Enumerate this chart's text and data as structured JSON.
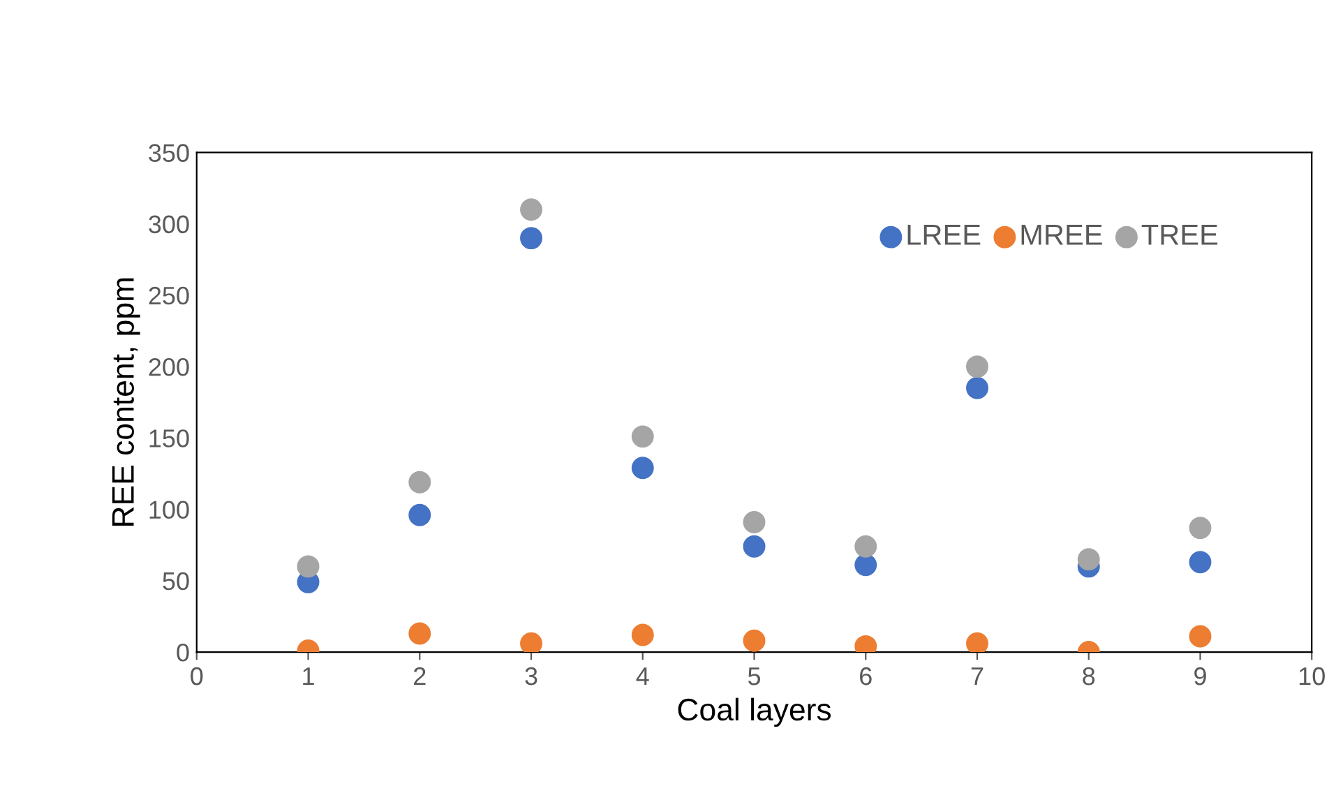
{
  "chart_data": {
    "type": "scatter",
    "xlabel": "Coal layers",
    "ylabel": "REE content, ppm",
    "x": [
      1,
      2,
      3,
      4,
      5,
      6,
      7,
      8,
      9
    ],
    "series": [
      {
        "name": "LREE",
        "color": "#4472c4",
        "values": [
          49,
          96,
          290,
          129,
          74,
          61,
          185,
          60,
          63
        ]
      },
      {
        "name": "MREE",
        "color": "#ed7d31",
        "values": [
          1,
          13,
          6,
          12,
          8,
          4,
          6,
          0,
          11
        ]
      },
      {
        "name": "TREE",
        "color": "#a5a5a5",
        "values": [
          60,
          119,
          310,
          151,
          91,
          74,
          200,
          65,
          87
        ]
      }
    ],
    "xlim": [
      0,
      10
    ],
    "xticks": [
      0,
      1,
      2,
      3,
      4,
      5,
      6,
      7,
      8,
      9,
      10
    ],
    "ylim": [
      0,
      350
    ],
    "yticks": [
      0,
      50,
      100,
      150,
      200,
      250,
      300,
      350
    ],
    "marker": "circle",
    "grid": false,
    "legend": "top right"
  }
}
